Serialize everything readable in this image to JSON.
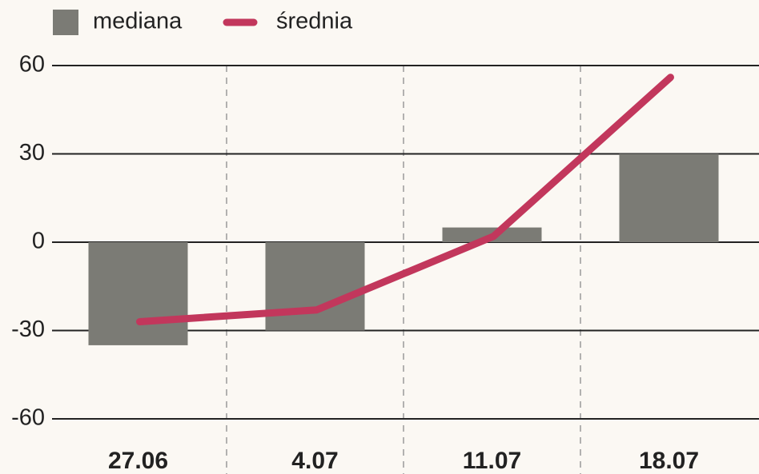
{
  "chart_data": {
    "type": "bar",
    "categories": [
      "27.06",
      "4.07",
      "11.07",
      "18.07"
    ],
    "series": [
      {
        "name": "mediana",
        "type": "bar",
        "color": "#7b7b75",
        "values": [
          -35,
          -30,
          5,
          30
        ]
      },
      {
        "name": "średnia",
        "type": "line",
        "color": "#c2375c",
        "values": [
          -27,
          -23,
          2,
          56
        ]
      }
    ],
    "ylim": [
      -60,
      60
    ],
    "yticks": [
      -60,
      -30,
      0,
      30,
      60
    ],
    "grid": true
  }
}
